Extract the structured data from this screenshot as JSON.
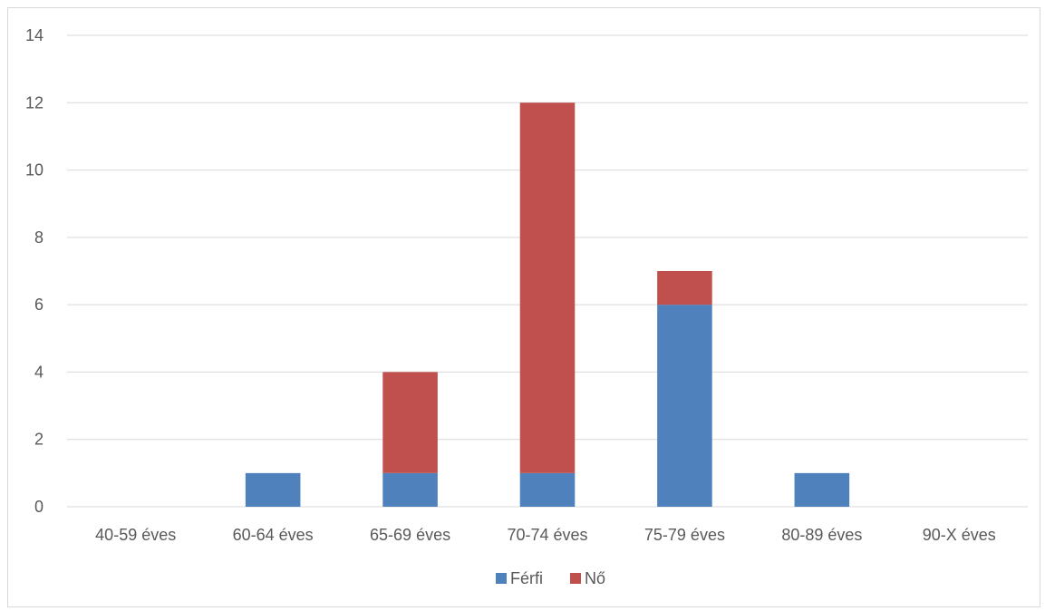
{
  "chart_data": {
    "type": "bar",
    "stacked": true,
    "title": "",
    "xlabel": "",
    "ylabel": "",
    "categories": [
      "40-59 éves",
      "60-64 éves",
      "65-69 éves",
      "70-74 éves",
      "75-79 éves",
      "80-89 éves",
      "90-X éves"
    ],
    "series": [
      {
        "name": "Férfi",
        "values": [
          0,
          1,
          1,
          1,
          6,
          1,
          0
        ],
        "color": "#4f81bd"
      },
      {
        "name": "Nő",
        "values": [
          0,
          0,
          3,
          11,
          1,
          0,
          0
        ],
        "color": "#c0504d"
      }
    ],
    "ylim": [
      0,
      14
    ],
    "yticks": [
      "0",
      "2",
      "4",
      "6",
      "8",
      "10",
      "12",
      "14"
    ],
    "grid": true,
    "legend_position": "bottom"
  }
}
